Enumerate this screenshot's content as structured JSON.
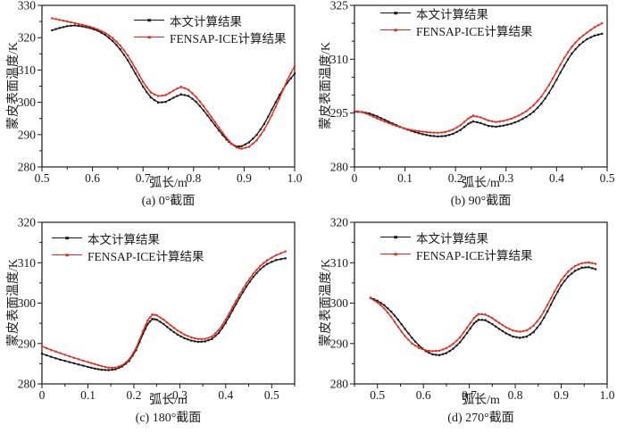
{
  "figure": {
    "background": "#ffffff",
    "axis_color": "#1a1a1a",
    "series1_color": "#1a1a1a",
    "series2_color": "#e8291e"
  },
  "chart_data": [
    {
      "type": "line",
      "caption": "(a) 0°截面",
      "xlabel": "弧长/m",
      "ylabel": "蒙皮表面温度/K",
      "xlim": [
        0.5,
        1.0
      ],
      "ylim": [
        280,
        330
      ],
      "xticks": [
        "0.5",
        "0.6",
        "0.7",
        "0.8",
        "0.9",
        "1.0"
      ],
      "yticks": [
        "280",
        "290",
        "300",
        "310",
        "320",
        "330"
      ],
      "x_minor_step": 0.05,
      "y_minor_step": 5,
      "grid": false,
      "legend_position": "inside-top",
      "series": [
        {
          "name": "本文计算结果",
          "color": "#1a1a1a",
          "marker": "square",
          "x": [
            0.52,
            0.535,
            0.55,
            0.565,
            0.58,
            0.595,
            0.61,
            0.625,
            0.64,
            0.655,
            0.67,
            0.685,
            0.7,
            0.715,
            0.73,
            0.745,
            0.76,
            0.775,
            0.79,
            0.805,
            0.82,
            0.835,
            0.85,
            0.865,
            0.875,
            0.885,
            0.895,
            0.91,
            0.925,
            0.94,
            0.955,
            0.97,
            0.985,
            1.0
          ],
          "y": [
            322.3,
            323.0,
            323.6,
            323.8,
            323.5,
            323.0,
            322.2,
            320.9,
            319.0,
            316.4,
            313.0,
            308.9,
            304.8,
            301.5,
            299.9,
            300.1,
            301.4,
            302.5,
            302.0,
            300.2,
            297.5,
            294.4,
            291.3,
            288.5,
            287.1,
            286.3,
            286.4,
            287.6,
            289.9,
            293.3,
            297.8,
            302.3,
            306.0,
            308.9
          ]
        },
        {
          "name": "FENSAP-ICE计算结果",
          "color": "#e8291e",
          "marker": "circle",
          "x": [
            0.52,
            0.535,
            0.55,
            0.565,
            0.58,
            0.595,
            0.61,
            0.625,
            0.64,
            0.655,
            0.67,
            0.685,
            0.7,
            0.715,
            0.73,
            0.745,
            0.76,
            0.775,
            0.79,
            0.805,
            0.82,
            0.835,
            0.85,
            0.865,
            0.875,
            0.885,
            0.895,
            0.91,
            0.925,
            0.94,
            0.955,
            0.97,
            0.985,
            1.0
          ],
          "y": [
            326.0,
            325.5,
            325.0,
            324.5,
            324.0,
            323.4,
            322.6,
            321.5,
            319.9,
            317.6,
            314.5,
            310.5,
            306.3,
            303.0,
            301.9,
            302.2,
            303.6,
            304.9,
            303.9,
            301.7,
            298.8,
            295.5,
            292.2,
            289.0,
            287.2,
            286.0,
            285.6,
            286.2,
            288.2,
            291.5,
            296.0,
            301.2,
            306.8,
            311.2
          ]
        }
      ]
    },
    {
      "type": "line",
      "caption": "(b) 90°截面",
      "xlabel": "弧长/m",
      "ylabel": "蒙皮表面温度/K",
      "xlim": [
        0,
        0.5
      ],
      "ylim": [
        280,
        325
      ],
      "xticks": [
        "0",
        "0.1",
        "0.2",
        "0.3",
        "0.4",
        "0.5"
      ],
      "yticks": [
        "280",
        "295",
        "310",
        "325"
      ],
      "x_minor_step": 0.05,
      "y_minor_step": 5,
      "grid": false,
      "legend_position": "inside-top-left",
      "series": [
        {
          "name": "本文计算结果",
          "color": "#1a1a1a",
          "marker": "square",
          "x": [
            0,
            0.015,
            0.03,
            0.045,
            0.06,
            0.075,
            0.09,
            0.105,
            0.12,
            0.135,
            0.15,
            0.165,
            0.18,
            0.195,
            0.21,
            0.225,
            0.235,
            0.25,
            0.265,
            0.28,
            0.295,
            0.31,
            0.325,
            0.34,
            0.355,
            0.37,
            0.385,
            0.4,
            0.415,
            0.43,
            0.445,
            0.46,
            0.475,
            0.49
          ],
          "y": [
            295.4,
            295.3,
            294.9,
            294.1,
            293.1,
            292.1,
            291.2,
            290.4,
            289.7,
            289.1,
            288.7,
            288.5,
            288.6,
            289.2,
            290.3,
            292.0,
            292.7,
            292.2,
            291.4,
            291.2,
            291.5,
            292.0,
            292.8,
            293.9,
            295.4,
            297.6,
            300.6,
            304.3,
            308.2,
            311.6,
            314.0,
            315.6,
            316.6,
            317.1
          ]
        },
        {
          "name": "FENSAP-ICE计算结果",
          "color": "#e8291e",
          "marker": "circle",
          "x": [
            0,
            0.015,
            0.03,
            0.045,
            0.06,
            0.075,
            0.09,
            0.105,
            0.12,
            0.135,
            0.15,
            0.165,
            0.18,
            0.195,
            0.21,
            0.225,
            0.235,
            0.25,
            0.265,
            0.28,
            0.295,
            0.31,
            0.325,
            0.34,
            0.355,
            0.37,
            0.385,
            0.4,
            0.415,
            0.43,
            0.445,
            0.46,
            0.475,
            0.49
          ],
          "y": [
            295.6,
            295.3,
            294.5,
            293.5,
            292.6,
            291.8,
            291.1,
            290.5,
            290.1,
            289.8,
            289.6,
            289.5,
            289.7,
            290.4,
            291.6,
            293.5,
            294.3,
            293.8,
            292.9,
            292.5,
            292.8,
            293.4,
            294.3,
            295.5,
            297.2,
            299.6,
            302.8,
            306.6,
            310.4,
            313.5,
            315.8,
            317.4,
            318.9,
            320.0
          ]
        }
      ]
    },
    {
      "type": "line",
      "caption": "(c) 180°截面",
      "xlabel": "弧长/m",
      "ylabel": "蒙皮表面温度/K",
      "xlim": [
        0,
        0.55
      ],
      "ylim": [
        280,
        320
      ],
      "xticks": [
        "0",
        "0.1",
        "0.2",
        "0.3",
        "0.4",
        "0.5"
      ],
      "yticks": [
        "280",
        "290",
        "300",
        "310",
        "320"
      ],
      "x_minor_step": 0.05,
      "y_minor_step": 5,
      "grid": false,
      "legend_position": "inside-top-left",
      "series": [
        {
          "name": "本文计算结果",
          "color": "#1a1a1a",
          "marker": "square",
          "x": [
            0,
            0.02,
            0.04,
            0.06,
            0.08,
            0.1,
            0.115,
            0.13,
            0.145,
            0.16,
            0.175,
            0.19,
            0.205,
            0.22,
            0.23,
            0.24,
            0.25,
            0.265,
            0.28,
            0.295,
            0.31,
            0.325,
            0.34,
            0.355,
            0.37,
            0.385,
            0.4,
            0.415,
            0.43,
            0.445,
            0.46,
            0.475,
            0.49,
            0.51,
            0.53
          ],
          "y": [
            287.5,
            286.7,
            286.0,
            285.4,
            284.8,
            284.2,
            283.8,
            283.5,
            283.4,
            283.6,
            284.3,
            285.7,
            288.3,
            292.4,
            294.8,
            296.1,
            295.9,
            294.8,
            293.4,
            292.2,
            291.3,
            290.7,
            290.4,
            290.5,
            291.1,
            292.6,
            295.1,
            298.2,
            301.3,
            304.1,
            306.5,
            308.4,
            309.7,
            310.7,
            311.1
          ]
        },
        {
          "name": "FENSAP-ICE计算结果",
          "color": "#e8291e",
          "marker": "circle",
          "x": [
            0,
            0.02,
            0.04,
            0.06,
            0.08,
            0.1,
            0.115,
            0.13,
            0.145,
            0.16,
            0.175,
            0.19,
            0.205,
            0.22,
            0.23,
            0.24,
            0.25,
            0.265,
            0.28,
            0.295,
            0.31,
            0.325,
            0.34,
            0.355,
            0.37,
            0.385,
            0.4,
            0.415,
            0.43,
            0.445,
            0.46,
            0.475,
            0.49,
            0.51,
            0.53
          ],
          "y": [
            289.3,
            288.4,
            287.6,
            286.8,
            286.1,
            285.4,
            284.9,
            284.4,
            284.0,
            284.0,
            284.6,
            286.0,
            288.8,
            293.1,
            295.7,
            297.2,
            297.0,
            295.9,
            294.5,
            293.2,
            292.2,
            291.5,
            291.1,
            291.1,
            291.7,
            293.3,
            295.9,
            299.0,
            302.1,
            304.9,
            307.3,
            309.2,
            310.6,
            311.9,
            312.8
          ]
        }
      ]
    },
    {
      "type": "line",
      "caption": "(d) 270°截面",
      "xlabel": "弧长/m",
      "ylabel": "蒙皮表面温度/K",
      "xlim": [
        0.45,
        1.0
      ],
      "ylim": [
        280,
        320
      ],
      "xticks": [
        "0.5",
        "0.6",
        "0.7",
        "0.8",
        "0.9",
        "1.0"
      ],
      "yticks": [
        "280",
        "290",
        "300",
        "310",
        "320"
      ],
      "x_minor_step": 0.05,
      "y_minor_step": 5,
      "grid": false,
      "legend_position": "inside-top-left",
      "series": [
        {
          "name": "本文计算结果",
          "color": "#1a1a1a",
          "marker": "square",
          "x": [
            0.485,
            0.5,
            0.515,
            0.53,
            0.545,
            0.56,
            0.575,
            0.59,
            0.605,
            0.62,
            0.635,
            0.65,
            0.665,
            0.68,
            0.695,
            0.71,
            0.72,
            0.735,
            0.75,
            0.765,
            0.78,
            0.795,
            0.81,
            0.825,
            0.84,
            0.855,
            0.87,
            0.885,
            0.9,
            0.915,
            0.93,
            0.945,
            0.96,
            0.975
          ],
          "y": [
            301.3,
            300.6,
            299.5,
            297.9,
            295.9,
            293.6,
            291.4,
            289.5,
            288.1,
            287.3,
            287.1,
            287.6,
            288.7,
            290.3,
            292.6,
            295.0,
            295.9,
            295.8,
            294.8,
            293.6,
            292.5,
            291.7,
            291.4,
            291.7,
            292.8,
            294.9,
            297.9,
            301.3,
            304.4,
            306.6,
            308.0,
            308.8,
            308.9,
            308.4
          ]
        },
        {
          "name": "FENSAP-ICE计算结果",
          "color": "#e8291e",
          "marker": "circle",
          "x": [
            0.485,
            0.5,
            0.515,
            0.53,
            0.545,
            0.56,
            0.575,
            0.59,
            0.605,
            0.62,
            0.635,
            0.65,
            0.665,
            0.68,
            0.695,
            0.71,
            0.72,
            0.735,
            0.75,
            0.765,
            0.78,
            0.795,
            0.81,
            0.825,
            0.84,
            0.855,
            0.87,
            0.885,
            0.9,
            0.915,
            0.93,
            0.945,
            0.96,
            0.975
          ],
          "y": [
            301.2,
            300.2,
            298.7,
            296.6,
            294.1,
            291.8,
            290.0,
            288.9,
            288.3,
            288.1,
            288.2,
            288.8,
            289.9,
            291.5,
            293.9,
            296.3,
            297.3,
            297.2,
            296.3,
            295.1,
            294.0,
            293.2,
            292.9,
            293.2,
            294.4,
            296.5,
            299.5,
            302.8,
            305.7,
            307.8,
            309.2,
            309.9,
            310.1,
            309.7
          ]
        }
      ]
    }
  ]
}
